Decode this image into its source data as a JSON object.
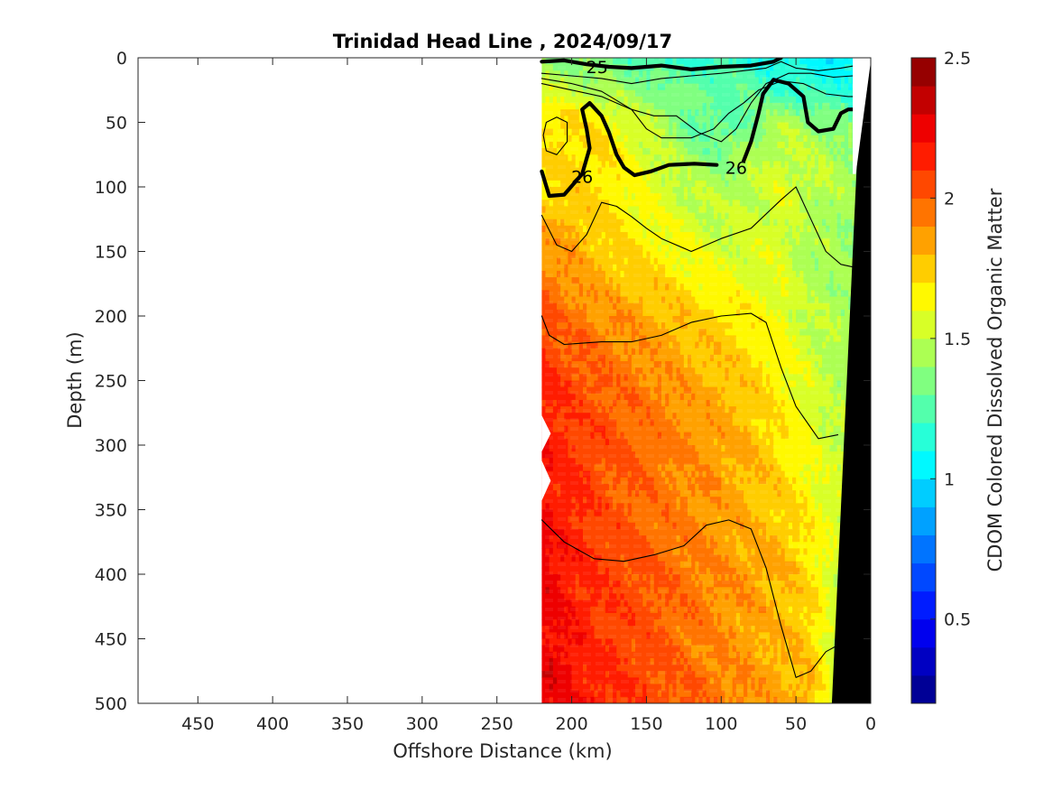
{
  "chart_data": {
    "type": "heatmap",
    "subtype": "filled-contour section",
    "title": "Trinidad Head Line , 2024/09/17",
    "xlabel": "Offshore Distance (km)",
    "ylabel": "Depth (m)",
    "xlim": [
      490,
      0
    ],
    "ylim": [
      0,
      500
    ],
    "x_reversed": true,
    "y_reversed": true,
    "x_ticks": [
      450,
      400,
      350,
      300,
      250,
      200,
      150,
      100,
      50,
      0
    ],
    "y_ticks": [
      0,
      50,
      100,
      150,
      200,
      250,
      300,
      350,
      400,
      450,
      500
    ],
    "x_tick_labels": [
      "450",
      "400",
      "350",
      "300",
      "250",
      "200",
      "150",
      "100",
      "50",
      "0"
    ],
    "y_tick_labels": [
      "0",
      "50",
      "100",
      "150",
      "200",
      "250",
      "300",
      "350",
      "400",
      "450",
      "500"
    ],
    "grid": false,
    "data_extent_km": [
      220,
      0
    ],
    "colorbar": {
      "label": "CDOM Colored Dissolved Organic Matter",
      "range": [
        0.2,
        2.5
      ],
      "ticks": [
        0.5,
        1,
        1.5,
        2,
        2.5
      ],
      "tick_labels": [
        "0.5",
        "1",
        "1.5",
        "2",
        "2.5"
      ],
      "colormap": "jet",
      "levels": 23
    },
    "cdom_field": {
      "x_km": [
        220,
        200,
        180,
        160,
        140,
        120,
        100,
        80,
        60,
        40,
        20,
        8
      ],
      "depth_m": [
        0,
        25,
        50,
        75,
        100,
        150,
        200,
        250,
        300,
        350,
        400,
        450,
        500
      ],
      "values": [
        [
          1.4,
          1.35,
          1.3,
          1.25,
          1.2,
          1.15,
          1.2,
          1.15,
          1.1,
          1.05,
          1.05,
          1.05
        ],
        [
          1.55,
          1.5,
          1.45,
          1.4,
          1.35,
          1.3,
          1.3,
          1.25,
          1.2,
          1.15,
          1.15,
          1.15
        ],
        [
          1.7,
          1.75,
          1.65,
          1.55,
          1.45,
          1.3,
          1.25,
          1.35,
          1.45,
          1.4,
          1.35,
          1.3
        ],
        [
          1.7,
          1.72,
          1.7,
          1.62,
          1.52,
          1.4,
          1.35,
          1.45,
          1.55,
          1.5,
          1.45,
          1.4
        ],
        [
          1.72,
          1.72,
          1.7,
          1.62,
          1.55,
          1.5,
          1.45,
          1.5,
          1.55,
          1.5,
          1.45,
          1.4
        ],
        [
          1.9,
          1.85,
          1.75,
          1.7,
          1.65,
          1.6,
          1.55,
          1.55,
          1.55,
          1.45,
          1.4,
          1.4
        ],
        [
          2.05,
          1.95,
          1.9,
          1.85,
          1.8,
          1.75,
          1.7,
          1.65,
          1.6,
          1.5,
          1.45,
          1.45
        ],
        [
          2.15,
          2.05,
          2.0,
          1.95,
          1.9,
          1.85,
          1.8,
          1.75,
          1.65,
          1.55,
          1.45,
          1.45
        ],
        [
          2.2,
          2.1,
          2.05,
          2.0,
          1.95,
          1.9,
          1.85,
          1.8,
          1.7,
          1.6,
          1.5,
          1.5
        ],
        [
          2.2,
          2.15,
          2.05,
          2.0,
          1.95,
          1.9,
          1.85,
          1.8,
          1.75,
          1.65,
          1.55,
          1.55
        ],
        [
          2.25,
          2.15,
          2.1,
          2.05,
          2.0,
          1.95,
          1.9,
          1.85,
          1.8,
          1.7,
          1.5,
          1.5
        ],
        [
          2.25,
          2.2,
          2.1,
          2.05,
          2.0,
          1.95,
          1.9,
          1.85,
          1.8,
          1.75,
          1.45,
          1.45
        ],
        [
          2.3,
          2.2,
          2.15,
          2.1,
          2.05,
          2.0,
          1.95,
          1.9,
          1.85,
          1.8,
          1.5,
          1.5
        ]
      ]
    },
    "density_contours": [
      {
        "label": "25",
        "bold": true,
        "label_at": [
          183,
          7
        ],
        "points": [
          [
            220,
            3
          ],
          [
            205,
            2
          ],
          [
            190,
            5
          ],
          [
            175,
            7
          ],
          [
            160,
            8
          ],
          [
            140,
            6
          ],
          [
            120,
            9
          ],
          [
            100,
            7
          ],
          [
            80,
            6
          ],
          [
            65,
            3
          ],
          [
            60,
            0
          ]
        ]
      },
      {
        "label": "26",
        "bold": true,
        "label_at": [
          193,
          92
        ],
        "points": [
          [
            220,
            88
          ],
          [
            215,
            107
          ],
          [
            205,
            106
          ],
          [
            193,
            90
          ],
          [
            188,
            70
          ],
          [
            190,
            55
          ],
          [
            193,
            40
          ],
          [
            188,
            35
          ],
          [
            180,
            45
          ],
          [
            175,
            58
          ],
          [
            170,
            75
          ],
          [
            165,
            85
          ],
          [
            158,
            91
          ],
          [
            147,
            88
          ],
          [
            135,
            83
          ],
          [
            118,
            82
          ],
          [
            103,
            83
          ]
        ]
      },
      {
        "label": "26",
        "bold": true,
        "label_at": [
          90,
          85
        ],
        "points": [
          [
            85,
            80
          ],
          [
            80,
            65
          ],
          [
            75,
            43
          ],
          [
            72,
            28
          ],
          [
            65,
            17
          ],
          [
            55,
            20
          ],
          [
            45,
            30
          ],
          [
            42,
            50
          ],
          [
            35,
            57
          ],
          [
            25,
            55
          ],
          [
            20,
            43
          ],
          [
            15,
            40
          ],
          [
            10,
            40
          ]
        ]
      },
      {
        "bold": false,
        "points": [
          [
            220,
            12
          ],
          [
            200,
            14
          ],
          [
            180,
            16
          ],
          [
            160,
            20
          ],
          [
            140,
            16
          ],
          [
            120,
            14
          ],
          [
            100,
            12
          ],
          [
            85,
            10
          ],
          [
            70,
            8
          ],
          [
            60,
            3
          ],
          [
            50,
            8
          ],
          [
            35,
            10
          ],
          [
            20,
            8
          ],
          [
            10,
            6
          ]
        ]
      },
      {
        "bold": false,
        "points": [
          [
            220,
            16
          ],
          [
            200,
            20
          ],
          [
            180,
            26
          ],
          [
            160,
            40
          ],
          [
            145,
            45
          ],
          [
            130,
            45
          ],
          [
            115,
            58
          ],
          [
            100,
            65
          ],
          [
            90,
            55
          ],
          [
            80,
            35
          ],
          [
            70,
            20
          ],
          [
            55,
            12
          ],
          [
            40,
            12
          ],
          [
            25,
            15
          ],
          [
            12,
            14
          ]
        ]
      },
      {
        "bold": false,
        "points": [
          [
            220,
            20
          ],
          [
            200,
            25
          ],
          [
            180,
            30
          ],
          [
            170,
            35
          ],
          [
            160,
            40
          ],
          [
            150,
            55
          ],
          [
            140,
            62
          ],
          [
            120,
            62
          ],
          [
            105,
            55
          ],
          [
            95,
            43
          ],
          [
            85,
            35
          ],
          [
            75,
            25
          ],
          [
            60,
            18
          ],
          [
            45,
            20
          ],
          [
            30,
            28
          ],
          [
            15,
            30
          ],
          [
            10,
            30
          ]
        ]
      },
      {
        "bold": false,
        "points": [
          [
            217,
            50
          ],
          [
            210,
            46
          ],
          [
            203,
            50
          ],
          [
            203,
            65
          ],
          [
            210,
            75
          ],
          [
            217,
            72
          ],
          [
            219,
            60
          ],
          [
            217,
            50
          ]
        ]
      },
      {
        "bold": false,
        "points": [
          [
            220,
            122
          ],
          [
            210,
            145
          ],
          [
            200,
            150
          ],
          [
            190,
            137
          ],
          [
            180,
            112
          ],
          [
            170,
            115
          ],
          [
            160,
            123
          ],
          [
            150,
            132
          ],
          [
            140,
            140
          ],
          [
            120,
            150
          ],
          [
            100,
            140
          ],
          [
            80,
            132
          ],
          [
            60,
            110
          ],
          [
            50,
            100
          ],
          [
            40,
            125
          ],
          [
            30,
            150
          ],
          [
            20,
            160
          ],
          [
            12,
            162
          ]
        ]
      },
      {
        "bold": false,
        "points": [
          [
            220,
            200
          ],
          [
            215,
            215
          ],
          [
            205,
            222
          ],
          [
            180,
            220
          ],
          [
            160,
            220
          ],
          [
            140,
            215
          ],
          [
            120,
            205
          ],
          [
            100,
            200
          ],
          [
            80,
            198
          ],
          [
            70,
            205
          ],
          [
            60,
            240
          ],
          [
            50,
            270
          ],
          [
            35,
            295
          ],
          [
            22,
            292
          ]
        ]
      },
      {
        "bold": false,
        "points": [
          [
            220,
            358
          ],
          [
            205,
            375
          ],
          [
            185,
            388
          ],
          [
            165,
            390
          ],
          [
            145,
            385
          ],
          [
            125,
            378
          ],
          [
            110,
            362
          ],
          [
            95,
            358
          ],
          [
            80,
            365
          ],
          [
            70,
            395
          ],
          [
            60,
            440
          ],
          [
            50,
            480
          ],
          [
            40,
            475
          ],
          [
            30,
            460
          ],
          [
            22,
            455
          ]
        ]
      }
    ],
    "bathymetry": {
      "note": "black shelf/slope wedge",
      "points": [
        [
          0,
          0
        ],
        [
          0,
          500
        ],
        [
          26,
          500
        ],
        [
          8,
          50
        ],
        [
          0,
          0
        ]
      ]
    }
  }
}
